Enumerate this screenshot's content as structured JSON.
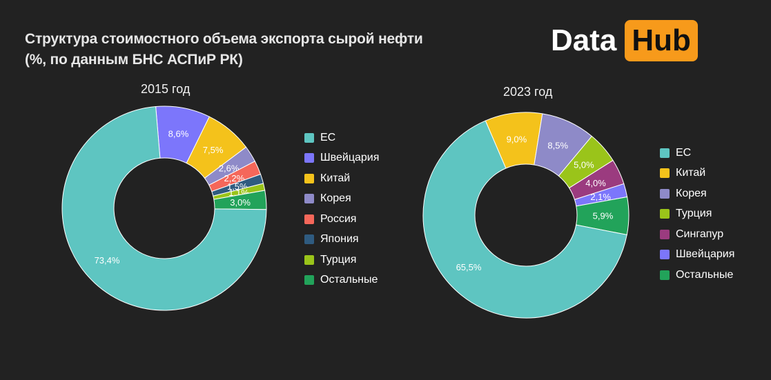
{
  "title_lines": [
    "Структура стоимостного объема экспорта сырой нефти",
    "(%, по данным БНС АСПиР РК)"
  ],
  "logo": {
    "part1": "Data",
    "part2": "Hub",
    "accent": "#f79a1b"
  },
  "chart_data": [
    {
      "type": "pie",
      "title": "2015 год",
      "categories": [
        "ЕС",
        "Швейцария",
        "Китай",
        "Корея",
        "Россия",
        "Япония",
        "Турция",
        "Остальные"
      ],
      "values": [
        73.4,
        8.6,
        7.5,
        2.6,
        2.2,
        1.5,
        1.1,
        3.0
      ],
      "labels": [
        "73,4%",
        "8,6%",
        "7,5%",
        "2,6%",
        "2,2%",
        "1,5%",
        "1,1%",
        "3,0%"
      ],
      "colors": [
        "#5ec5c1",
        "#7c76fb",
        "#f4c21b",
        "#8e8ac8",
        "#f5675a",
        "#2f5b80",
        "#9ac41a",
        "#22a35a"
      ]
    },
    {
      "type": "pie",
      "title": "2023 год",
      "categories": [
        "ЕС",
        "Китай",
        "Корея",
        "Турция",
        "Сингапур",
        "Швейцария",
        "Остальные"
      ],
      "values": [
        65.5,
        9.0,
        8.5,
        5.0,
        4.0,
        2.1,
        5.9
      ],
      "labels": [
        "65,5%",
        "9,0%",
        "8,5%",
        "5,0%",
        "4,0%",
        "2,1%",
        "5,9%"
      ],
      "colors": [
        "#5ec5c1",
        "#f4c21b",
        "#8e8ac8",
        "#9ac41a",
        "#9b3b7f",
        "#7c76fb",
        "#22a35a"
      ]
    }
  ]
}
